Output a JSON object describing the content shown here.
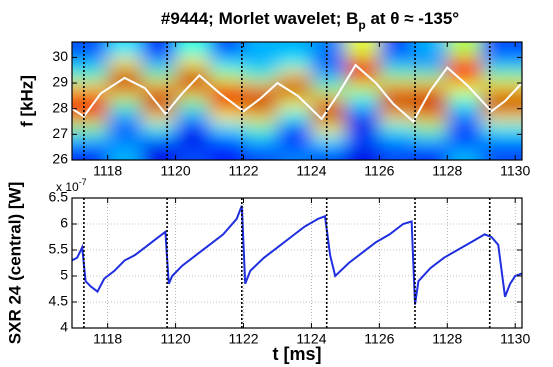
{
  "chart_data": [
    {
      "type": "heatmap",
      "title": "#9444; Morlet wavelet; B",
      "title_sub": "p",
      "title_rest": " at θ ≈ -135°",
      "ylabel": "f [kHz]",
      "xlim": [
        1116.95,
        1130.2
      ],
      "ylim": [
        26,
        30.6
      ],
      "xticks": [
        1118,
        1120,
        1122,
        1124,
        1126,
        1128,
        1130
      ],
      "yticks": [
        26,
        27,
        28,
        29,
        30
      ],
      "x": [
        1117.5,
        1118.5,
        1119.5,
        1120.5,
        1121.5,
        1122.5,
        1123.5,
        1124.5,
        1125.5,
        1126.5,
        1127.5,
        1128.5,
        1129.5
      ],
      "y": [
        30.25,
        29.75,
        29.25,
        28.75,
        28.25,
        27.75,
        27.25,
        26.75,
        26.25
      ],
      "z": [
        [
          0.2,
          0.35,
          0.15,
          0.4,
          0.2,
          0.3,
          0.3,
          0.25,
          0.6,
          0.2,
          0.3,
          0.55,
          0.2
        ],
        [
          0.3,
          0.65,
          0.3,
          0.65,
          0.35,
          0.3,
          0.4,
          0.2,
          0.9,
          0.3,
          0.25,
          0.85,
          0.3
        ],
        [
          0.45,
          0.95,
          0.5,
          0.95,
          0.55,
          0.45,
          0.7,
          0.3,
          0.8,
          0.5,
          0.5,
          0.85,
          0.5
        ],
        [
          0.7,
          0.75,
          0.75,
          0.75,
          0.8,
          0.75,
          0.95,
          0.5,
          0.55,
          0.75,
          0.75,
          0.6,
          0.7
        ],
        [
          0.9,
          0.5,
          0.95,
          0.5,
          0.9,
          0.95,
          0.65,
          0.75,
          0.35,
          0.95,
          0.95,
          0.4,
          0.95
        ],
        [
          0.8,
          0.3,
          0.7,
          0.3,
          0.65,
          0.7,
          0.4,
          0.95,
          0.2,
          0.7,
          0.75,
          0.25,
          0.7
        ],
        [
          0.5,
          0.2,
          0.4,
          0.15,
          0.35,
          0.45,
          0.2,
          0.65,
          0.1,
          0.4,
          0.5,
          0.2,
          0.4
        ],
        [
          0.3,
          0.25,
          0.2,
          0.1,
          0.2,
          0.3,
          0.15,
          0.35,
          0.2,
          0.25,
          0.3,
          0.15,
          0.25
        ],
        [
          0.15,
          0.3,
          0.1,
          0.2,
          0.15,
          0.2,
          0.25,
          0.2,
          0.1,
          0.2,
          0.15,
          0.3,
          0.2
        ]
      ],
      "zlim": [
        0,
        1
      ],
      "ridge": {
        "color": "#ffffff",
        "x": [
          1116.95,
          1117.3,
          1117.8,
          1118.5,
          1119.1,
          1119.7,
          1120.2,
          1120.7,
          1121.3,
          1122.0,
          1122.5,
          1123.0,
          1123.6,
          1124.3,
          1124.8,
          1125.3,
          1125.9,
          1126.4,
          1127.0,
          1127.5,
          1128.0,
          1128.6,
          1129.3,
          1129.7,
          1130.2
        ],
        "values": [
          28.0,
          27.7,
          28.6,
          29.2,
          28.8,
          27.8,
          28.6,
          29.3,
          28.6,
          27.9,
          28.4,
          29.0,
          28.5,
          27.6,
          28.6,
          29.7,
          29.0,
          28.2,
          27.5,
          28.7,
          29.6,
          28.9,
          27.9,
          28.3,
          29.0
        ]
      },
      "markers": [
        1117.3,
        1119.75,
        1121.95,
        1124.45,
        1127.05,
        1129.25
      ]
    },
    {
      "type": "line",
      "ylabel": "SXR 24 (central) [W]",
      "xlabel": "t [ms]",
      "exponent_base": "x 10",
      "exponent": "-7",
      "xlim": [
        1116.95,
        1130.2
      ],
      "ylim": [
        4,
        6.5
      ],
      "xticks": [
        1118,
        1120,
        1122,
        1124,
        1126,
        1128,
        1130
      ],
      "yticks": [
        4,
        4.5,
        5,
        5.5,
        6,
        6.5
      ],
      "grid": true,
      "series": [
        {
          "color": "#1f2fe0",
          "x": [
            1116.95,
            1117.1,
            1117.25,
            1117.35,
            1117.5,
            1117.7,
            1117.9,
            1118.2,
            1118.5,
            1118.8,
            1119.1,
            1119.4,
            1119.7,
            1119.8,
            1119.9,
            1120.2,
            1120.6,
            1121.0,
            1121.4,
            1121.8,
            1121.95,
            1122.05,
            1122.2,
            1122.6,
            1123.0,
            1123.4,
            1123.8,
            1124.2,
            1124.4,
            1124.55,
            1124.7,
            1125.1,
            1125.5,
            1125.9,
            1126.3,
            1126.7,
            1126.95,
            1127.05,
            1127.15,
            1127.5,
            1127.9,
            1128.3,
            1128.7,
            1129.1,
            1129.3,
            1129.5,
            1129.7,
            1129.85,
            1130.0,
            1130.2
          ],
          "values": [
            5.3,
            5.35,
            5.55,
            4.9,
            4.8,
            4.7,
            4.95,
            5.1,
            5.3,
            5.4,
            5.55,
            5.7,
            5.85,
            4.85,
            5.0,
            5.2,
            5.4,
            5.6,
            5.8,
            6.1,
            6.35,
            4.85,
            5.1,
            5.35,
            5.55,
            5.75,
            5.95,
            6.1,
            6.15,
            5.4,
            5.0,
            5.25,
            5.45,
            5.65,
            5.8,
            6.0,
            6.05,
            4.45,
            4.9,
            5.15,
            5.35,
            5.5,
            5.65,
            5.8,
            5.75,
            5.6,
            4.6,
            4.85,
            5.0,
            5.05
          ]
        }
      ],
      "markers": [
        1117.3,
        1119.75,
        1121.95,
        1124.45,
        1127.05,
        1129.25
      ]
    }
  ]
}
